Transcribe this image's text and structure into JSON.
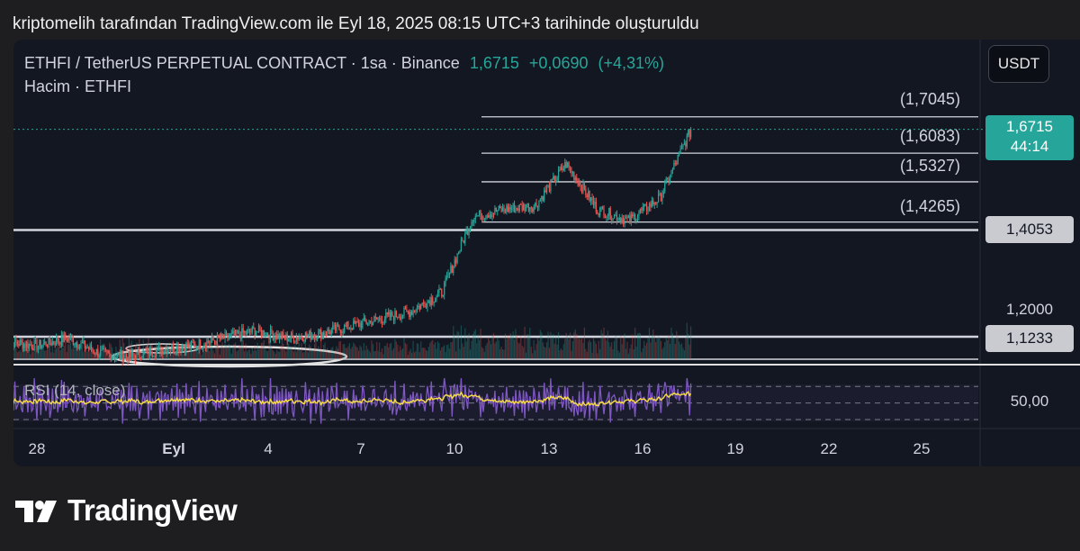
{
  "caption": "kriptomelih tarafından TradingView.com ile Eyl 18, 2025 08:15 UTC+3 tarihinde oluşturuldu",
  "header": {
    "symbol": "ETHFI / TetherUS PERPETUAL CONTRACT · 1sa · Binance",
    "last": "1,6715",
    "change": "+0,0690",
    "change_pct": "(+4,31%)",
    "volume_legend": "Hacim · ETHFI",
    "currency_button": "USDT"
  },
  "price_axis": {
    "tick_1200": "1,2000",
    "tick_50": "50,00",
    "current_price": "1,6715",
    "countdown": "44:14",
    "tag_14053": "1,4053",
    "tag_11233": "1,1233"
  },
  "levels": {
    "l17045": "(1,7045)",
    "l16083": "(1,6083)",
    "l15327": "(1,5327)",
    "l14265": "(1,4265)"
  },
  "rsi": {
    "label": "RSI (14, close)"
  },
  "time_axis": [
    "28",
    "Eyl",
    "4",
    "7",
    "10",
    "13",
    "16",
    "19",
    "22",
    "25"
  ],
  "brand": {
    "name": "TradingView"
  },
  "colors": {
    "up": "#26a69a",
    "down": "#ef5350",
    "rsi_line": "#7e57c2",
    "rsi_ma": "#f5d94a",
    "background": "#131722"
  },
  "chart_data": {
    "type": "candlestick",
    "timeframe": "1h",
    "x_range": [
      "Aug 28, 2025",
      "Sep 18, 2025"
    ],
    "ohlc_hourly_path": [
      {
        "date": "Aug 27",
        "price": 1.11
      },
      {
        "date": "Aug 28",
        "price": 1.1
      },
      {
        "date": "Aug 29",
        "price": 1.12
      },
      {
        "date": "Aug 30",
        "price": 1.08
      },
      {
        "date": "Aug 31",
        "price": 1.07
      },
      {
        "date": "Sep 1",
        "price": 1.09
      },
      {
        "date": "Sep 2",
        "price": 1.1
      },
      {
        "date": "Sep 3",
        "price": 1.12
      },
      {
        "date": "Sep 4",
        "price": 1.14
      },
      {
        "date": "Sep 5",
        "price": 1.12
      },
      {
        "date": "Sep 6",
        "price": 1.13
      },
      {
        "date": "Sep 7",
        "price": 1.15
      },
      {
        "date": "Sep 8",
        "price": 1.17
      },
      {
        "date": "Sep 9",
        "price": 1.19
      },
      {
        "date": "Sep 10",
        "price": 1.24
      },
      {
        "date": "Sep 11",
        "price": 1.44
      },
      {
        "date": "Sep 12",
        "price": 1.46
      },
      {
        "date": "Sep 13",
        "price": 1.47
      },
      {
        "date": "Sep 14",
        "price": 1.58
      },
      {
        "date": "Sep 15",
        "price": 1.46
      },
      {
        "date": "Sep 16",
        "price": 1.43
      },
      {
        "date": "Sep 17",
        "price": 1.49
      },
      {
        "date": "Sep 18",
        "price": 1.67
      }
    ],
    "last_price": 1.6715,
    "horizontal_levels": [
      1.7045,
      1.6083,
      1.5327,
      1.4265,
      1.4053,
      1.1233
    ],
    "rsi_levels": [
      30,
      50,
      70
    ],
    "rsi_length": 14,
    "rsi_source": "close"
  }
}
